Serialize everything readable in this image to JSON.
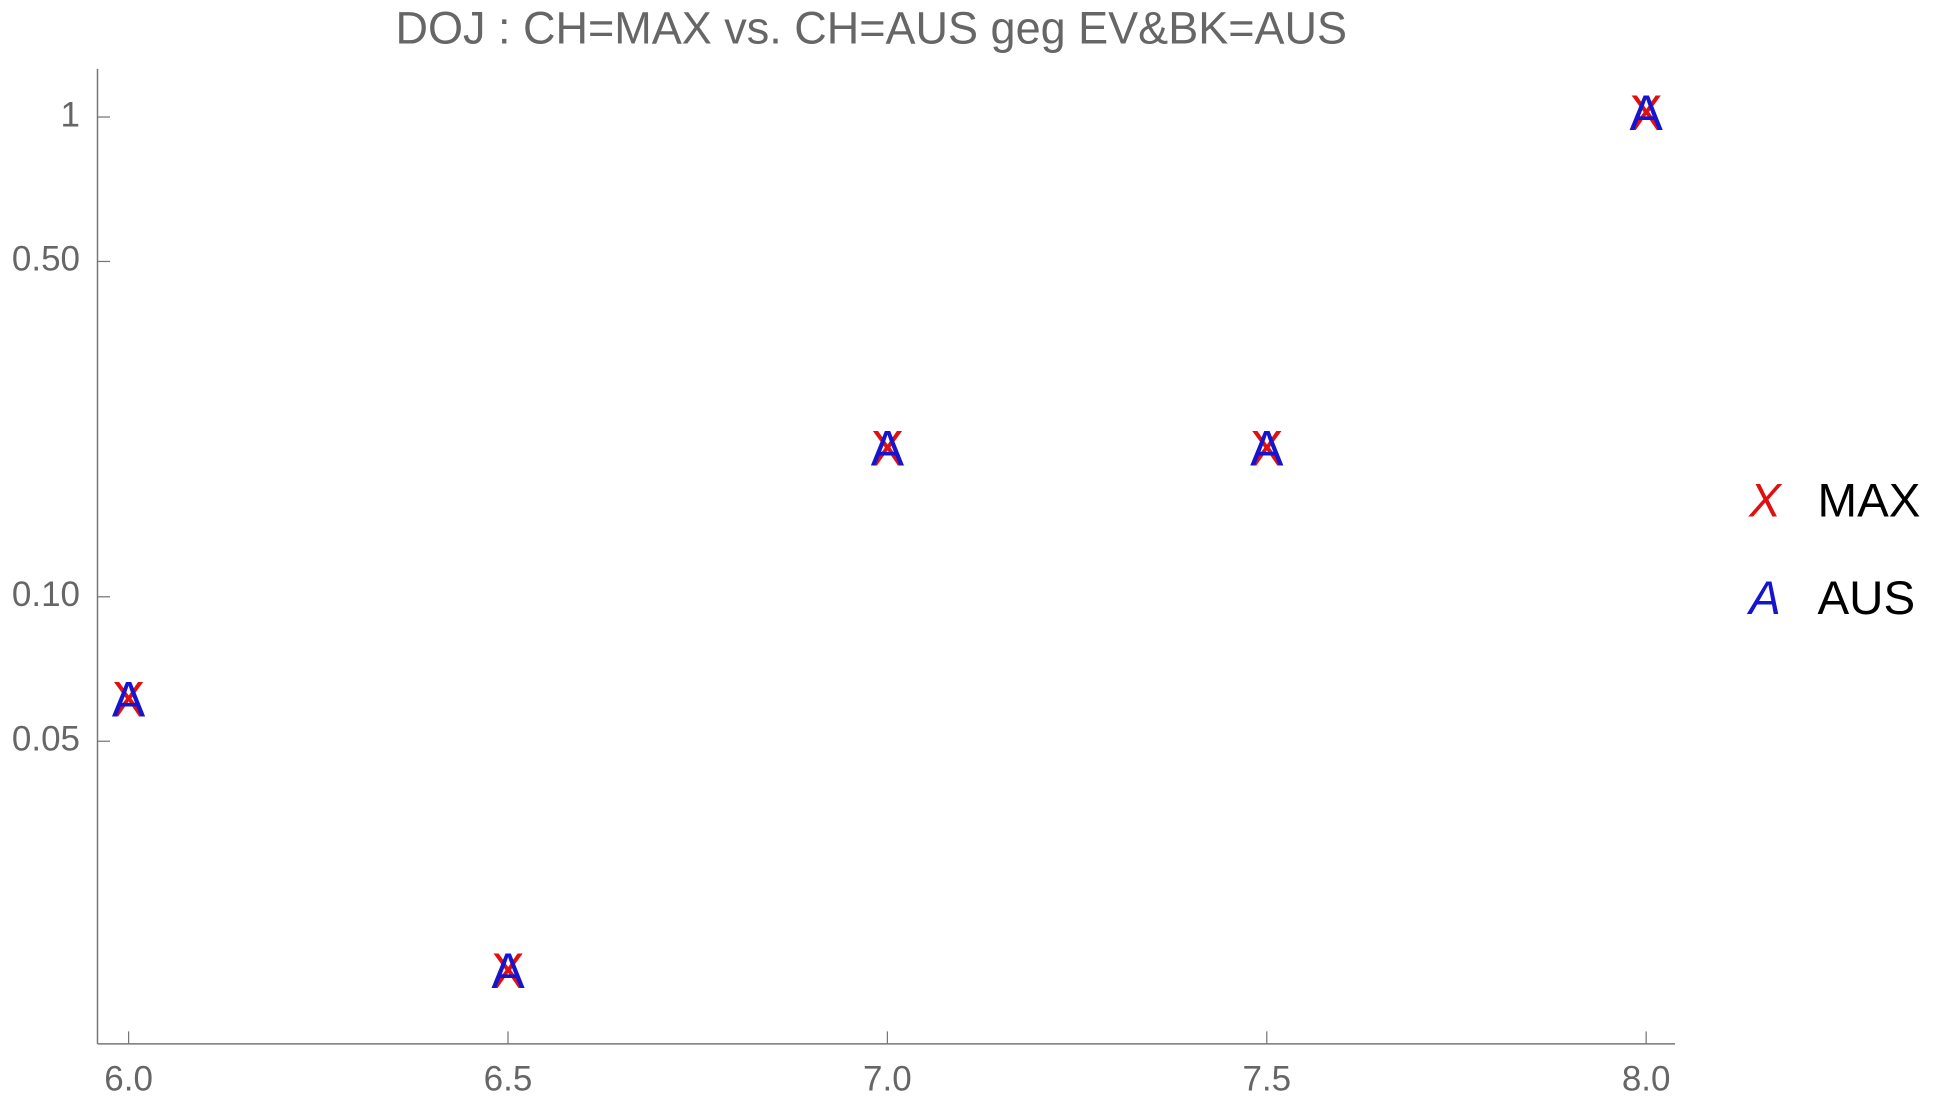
{
  "chart_data": {
    "type": "scatter",
    "title": "DOJ : CH=MAX vs. CH=AUS geg EV&BK=AUS",
    "x": [
      6.0,
      6.5,
      7.0,
      7.5,
      8.0
    ],
    "series": [
      {
        "name": "MAX",
        "marker": "X",
        "color": "#e01010",
        "values": [
          0.06,
          0.0163,
          0.2,
          0.2,
          1
        ]
      },
      {
        "name": "AUS",
        "marker": "A",
        "color": "#1515d0",
        "values": [
          0.06,
          0.0163,
          0.2,
          0.2,
          1
        ]
      }
    ],
    "xlim": [
      5.959,
      8.038
    ],
    "xticks": [
      {
        "value": 6,
        "label": "6.0"
      },
      {
        "value": 6.5,
        "label": "6.5"
      },
      {
        "value": 7,
        "label": "7.0"
      },
      {
        "value": 7.5,
        "label": "7.5"
      },
      {
        "value": 8,
        "label": "8.0"
      }
    ],
    "ylim": [
      0.0117,
      1.26
    ],
    "ylog": true,
    "yticks": [
      {
        "value": 0.05,
        "label": "0.05"
      },
      {
        "value": 0.1,
        "label": "0.10"
      },
      {
        "value": 0.5,
        "label": "0.50"
      },
      1
    ],
    "legend": "right"
  }
}
